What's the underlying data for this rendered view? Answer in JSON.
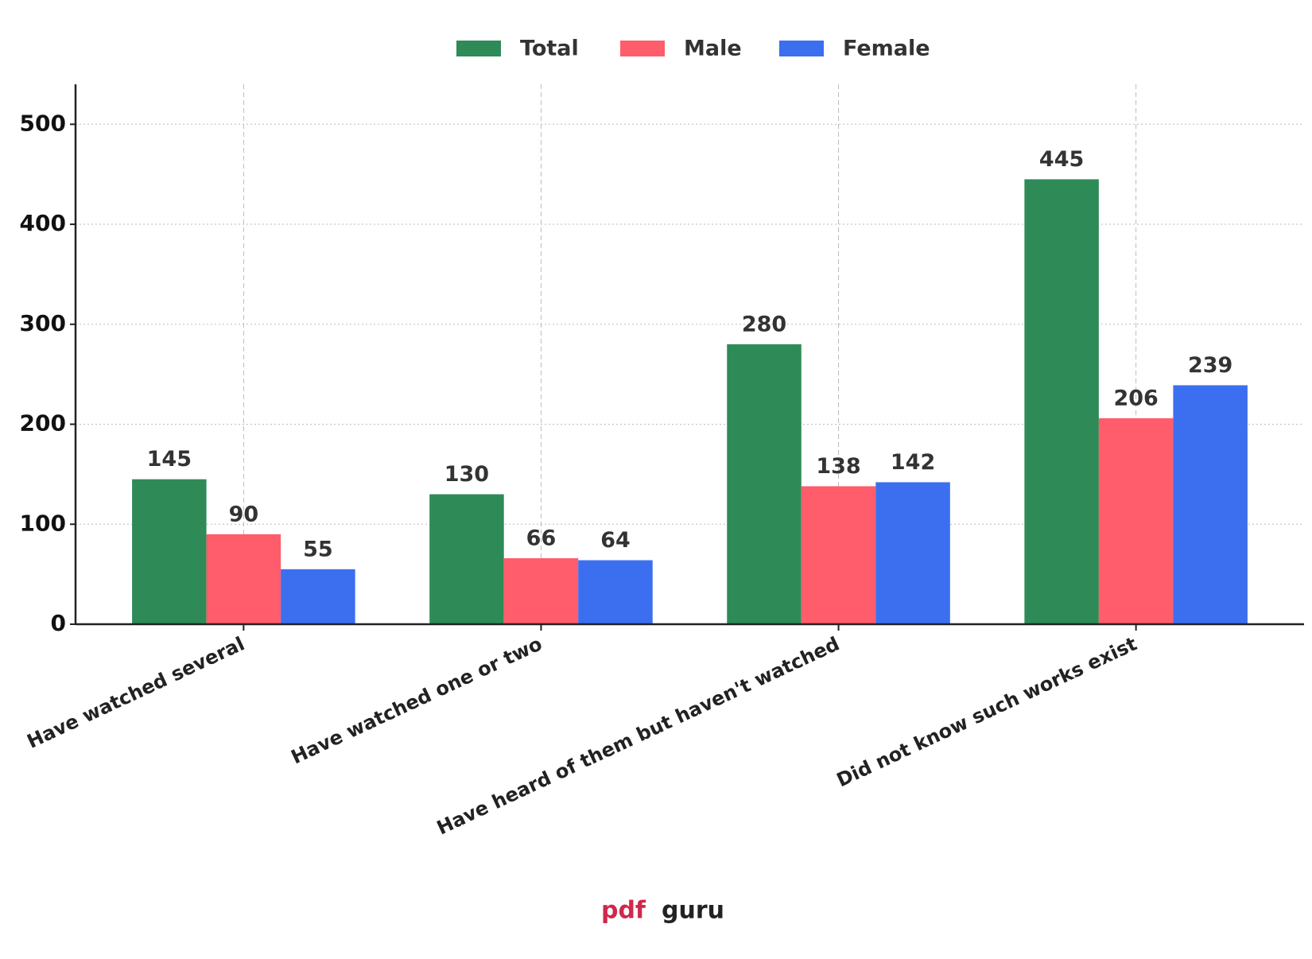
{
  "chart_data": {
    "type": "bar",
    "categories": [
      "Have watched several",
      "Have watched one or two",
      "Have heard of them but haven't watched",
      "Did not know such works exist"
    ],
    "series": [
      {
        "name": "Total",
        "color": "#2e8b57",
        "values": [
          145,
          130,
          280,
          445
        ]
      },
      {
        "name": "Male",
        "color": "#ff5c6c",
        "values": [
          90,
          66,
          138,
          206
        ]
      },
      {
        "name": "Female",
        "color": "#3b6ff0",
        "values": [
          55,
          64,
          142,
          239
        ]
      }
    ],
    "ylim": [
      0,
      540
    ],
    "yticks": [
      0,
      100,
      200,
      300,
      400,
      500
    ],
    "grid": true,
    "legend": "top"
  },
  "watermark": [
    "pdf",
    "guru"
  ]
}
